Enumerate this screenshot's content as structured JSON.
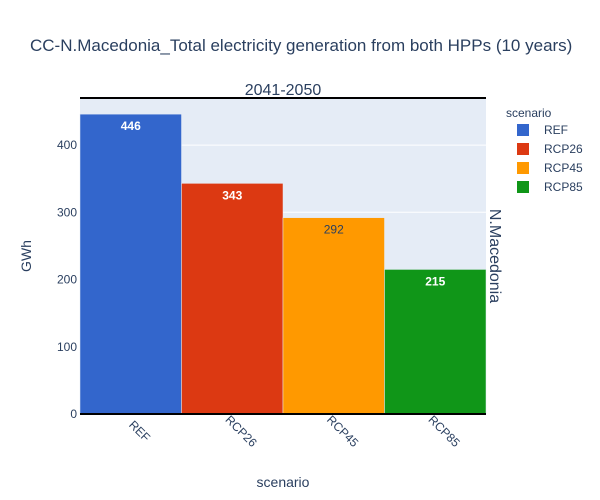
{
  "chart_data": {
    "type": "bar",
    "title": "CC-N.Macedonia_Total electricity generation from both HPPs (10 years)",
    "facet_col_label": "2041-2050",
    "facet_row_label": "N.Macedonia",
    "xlabel": "scenario",
    "ylabel": "GWh",
    "categories": [
      "REF",
      "RCP26",
      "RCP45",
      "RCP85"
    ],
    "values": [
      446,
      343,
      292,
      215
    ],
    "value_labels": [
      "446",
      "343",
      "292",
      "215"
    ],
    "ylim": [
      0,
      470
    ],
    "yticks": [
      0,
      100,
      200,
      300,
      400
    ],
    "grid": true,
    "legend": {
      "title": "scenario",
      "placement": "top-right",
      "entries": [
        "REF",
        "RCP26",
        "RCP45",
        "RCP85"
      ]
    },
    "colors": {
      "REF": "#3366cc",
      "RCP26": "#dc3912",
      "RCP45": "#ff9900",
      "RCP85": "#109618",
      "plot_background": "#e5ecf6",
      "text": "#2a3f5f"
    }
  }
}
